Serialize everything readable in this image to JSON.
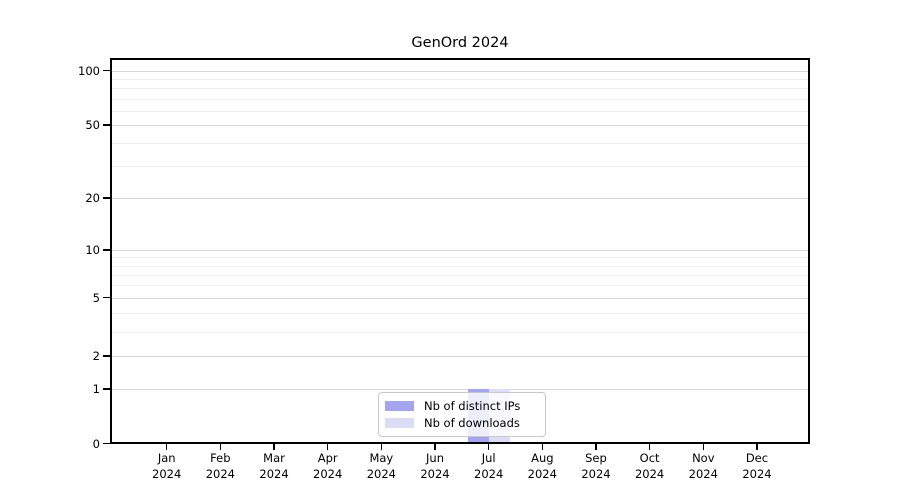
{
  "chart_data": {
    "type": "bar",
    "title": "GenOrd 2024",
    "categories": [
      "Jan",
      "Feb",
      "Mar",
      "Apr",
      "May",
      "Jun",
      "Jul",
      "Aug",
      "Sep",
      "Oct",
      "Nov",
      "Dec"
    ],
    "category_year": "2024",
    "series": [
      {
        "name": "Nb of distinct IPs",
        "color": "#a5a5ee",
        "values": [
          0,
          0,
          0,
          0,
          0,
          0,
          1,
          0,
          0,
          0,
          0,
          0
        ]
      },
      {
        "name": "Nb of downloads",
        "color": "#dcdcf6",
        "values": [
          0,
          0,
          0,
          0,
          0,
          0,
          1,
          0,
          0,
          0,
          0,
          0
        ]
      }
    ],
    "xlabel": "",
    "ylabel": "",
    "y_axis": {
      "scale": "log1p",
      "ticks": [
        0,
        1,
        2,
        5,
        10,
        20,
        50,
        100
      ],
      "minor_ticks": [
        3,
        4,
        6,
        7,
        8,
        9,
        30,
        40,
        60,
        70,
        80,
        90
      ],
      "range": [
        0,
        115
      ]
    },
    "grid": "horizontal",
    "legend_position": "lower center",
    "colors": {
      "major_grid": "#d6d6d6",
      "minor_grid": "#efefef",
      "axis": "#000000",
      "legend_border": "#c9c9c9",
      "background": "#ffffff"
    }
  }
}
